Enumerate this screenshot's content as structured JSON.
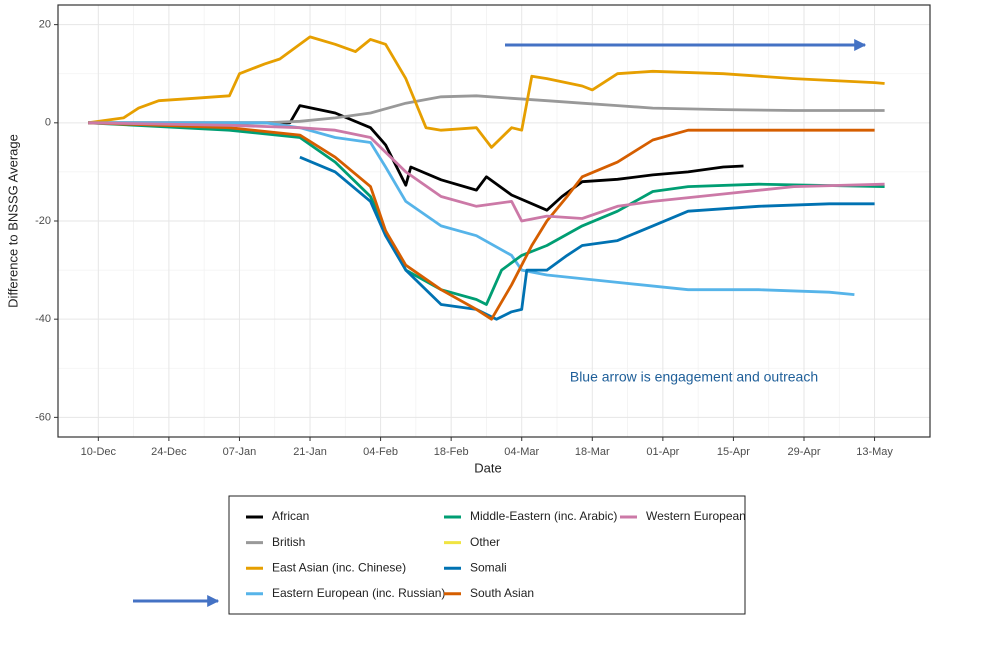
{
  "chart_data": {
    "type": "line",
    "xlabel": "Date",
    "ylabel": "Difference to BNSSG Average",
    "annotation": "Blue arrow is engagement and outreach",
    "xlim": [
      "02-Dec",
      "24-May"
    ],
    "xticks": [
      "10-Dec",
      "24-Dec",
      "07-Jan",
      "21-Jan",
      "04-Feb",
      "18-Feb",
      "04-Mar",
      "18-Mar",
      "01-Apr",
      "15-Apr",
      "29-Apr",
      "13-May"
    ],
    "ylim": [
      -64,
      24
    ],
    "yticks": [
      20,
      0,
      -20,
      -40,
      -60
    ],
    "grid": true,
    "series": [
      {
        "name": "African",
        "color": "#000000",
        "x": [
          "08-Dec",
          "05-Jan",
          "17-Jan",
          "19-Jan",
          "26-Jan",
          "02-Feb",
          "05-Feb",
          "09-Feb",
          "10-Feb",
          "16-Feb",
          "23-Feb",
          "25-Feb",
          "02-Mar",
          "09-Mar",
          "12-Mar",
          "16-Mar",
          "23-Mar",
          "30-Mar",
          "06-Apr",
          "13-Apr",
          "17-Apr"
        ],
        "values": [
          0,
          0,
          0,
          3.5,
          2,
          -1,
          -4.5,
          -12.7,
          -9,
          -11.6,
          -13.7,
          -11,
          -14.7,
          -17.8,
          -15,
          -12,
          -11.5,
          -10.6,
          -10,
          -9,
          -8.8
        ]
      },
      {
        "name": "British",
        "color": "#999999",
        "x": [
          "08-Dec",
          "12-Jan",
          "19-Jan",
          "26-Jan",
          "02-Feb",
          "09-Feb",
          "16-Feb",
          "23-Feb",
          "02-Mar",
          "09-Mar",
          "16-Mar",
          "23-Mar",
          "30-Mar",
          "13-Apr",
          "27-Apr",
          "15-May"
        ],
        "values": [
          0,
          0,
          0.3,
          1,
          2,
          4,
          5.3,
          5.5,
          5,
          4.5,
          4,
          3.5,
          3,
          2.7,
          2.5,
          2.5
        ]
      },
      {
        "name": "East Asian (inc. Chinese)",
        "color": "#E69F00",
        "x": [
          "08-Dec",
          "15-Dec",
          "18-Dec",
          "22-Dec",
          "29-Dec",
          "05-Jan",
          "07-Jan",
          "12-Jan",
          "15-Jan",
          "19-Jan",
          "21-Jan",
          "26-Jan",
          "30-Jan",
          "02-Feb",
          "05-Feb",
          "09-Feb",
          "13-Feb",
          "16-Feb",
          "23-Feb",
          "26-Feb",
          "02-Mar",
          "04-Mar",
          "06-Mar",
          "09-Mar",
          "16-Mar",
          "18-Mar",
          "23-Mar",
          "30-Mar",
          "13-Apr",
          "27-Apr",
          "13-May",
          "15-May"
        ],
        "values": [
          0,
          1,
          3,
          4.5,
          5,
          5.5,
          10,
          12,
          13,
          16,
          17.5,
          16,
          14.5,
          17,
          16,
          9,
          -1,
          -1.5,
          -1,
          -5,
          -1,
          -1.5,
          9.5,
          9,
          7.5,
          6.7,
          10,
          10.5,
          10,
          9,
          8.2,
          8
        ]
      },
      {
        "name": "Eastern European (inc. Russian)",
        "color": "#56B4E9",
        "x": [
          "08-Dec",
          "12-Jan",
          "19-Jan",
          "26-Jan",
          "02-Feb",
          "05-Feb",
          "09-Feb",
          "16-Feb",
          "23-Feb",
          "02-Mar",
          "04-Mar",
          "09-Mar",
          "23-Mar",
          "06-Apr",
          "20-Apr",
          "04-May",
          "09-May"
        ],
        "values": [
          0,
          0,
          -1,
          -3,
          -4,
          -9,
          -16,
          -21,
          -23,
          -27,
          -30,
          -31,
          -32.5,
          -34,
          -34,
          -34.5,
          -35
        ]
      },
      {
        "name": "Middle-Eastern (inc. Arabic)",
        "color": "#009E73",
        "x": [
          "08-Dec",
          "05-Jan",
          "19-Jan",
          "26-Jan",
          "02-Feb",
          "05-Feb",
          "09-Feb",
          "16-Feb",
          "23-Feb",
          "25-Feb",
          "28-Feb",
          "04-Mar",
          "09-Mar",
          "16-Mar",
          "23-Mar",
          "30-Mar",
          "06-Apr",
          "20-Apr",
          "15-May"
        ],
        "values": [
          0,
          -1.5,
          -3,
          -8,
          -15,
          -22,
          -30,
          -34,
          -36,
          -37,
          -30,
          -27,
          -25,
          -21,
          -18,
          -14,
          -13,
          -12.5,
          -13
        ]
      },
      {
        "name": "Other",
        "color": "#F0E442",
        "x": [],
        "values": []
      },
      {
        "name": "Somali",
        "color": "#0072B2",
        "x": [
          "19-Jan",
          "26-Jan",
          "02-Feb",
          "05-Feb",
          "09-Feb",
          "16-Feb",
          "23-Feb",
          "27-Feb",
          "02-Mar",
          "04-Mar",
          "05-Mar",
          "09-Mar",
          "13-Mar",
          "16-Mar",
          "23-Mar",
          "30-Mar",
          "06-Apr",
          "20-Apr",
          "04-May",
          "13-May"
        ],
        "values": [
          -7,
          -10,
          -16,
          -23,
          -30,
          -37,
          -38,
          -40,
          -38.5,
          -38,
          -30,
          -30,
          -27,
          -25,
          -24,
          -21,
          -18,
          -17,
          -16.5,
          -16.5
        ]
      },
      {
        "name": "South Asian",
        "color": "#D55E00",
        "x": [
          "08-Dec",
          "05-Jan",
          "19-Jan",
          "26-Jan",
          "02-Feb",
          "05-Feb",
          "09-Feb",
          "16-Feb",
          "23-Feb",
          "26-Feb",
          "02-Mar",
          "06-Mar",
          "09-Mar",
          "13-Mar",
          "16-Mar",
          "23-Mar",
          "30-Mar",
          "06-Apr",
          "20-Apr",
          "13-May"
        ],
        "values": [
          0,
          -1,
          -2.5,
          -7,
          -13,
          -22,
          -29,
          -34,
          -38,
          -40,
          -33,
          -25,
          -20,
          -15,
          -11,
          -8,
          -3.5,
          -1.5,
          -1.5,
          -1.5
        ]
      },
      {
        "name": "Western European",
        "color": "#CC79A7",
        "x": [
          "08-Dec",
          "05-Jan",
          "19-Jan",
          "26-Jan",
          "02-Feb",
          "05-Feb",
          "09-Feb",
          "16-Feb",
          "23-Feb",
          "02-Mar",
          "04-Mar",
          "09-Mar",
          "16-Mar",
          "23-Mar",
          "30-Mar",
          "13-Apr",
          "27-Apr",
          "15-May"
        ],
        "values": [
          0,
          -0.5,
          -1,
          -1.5,
          -3,
          -6,
          -10,
          -15,
          -17,
          -16,
          -20,
          -19,
          -19.5,
          -17,
          -16,
          -14.5,
          -13,
          -12.5
        ]
      }
    ]
  }
}
